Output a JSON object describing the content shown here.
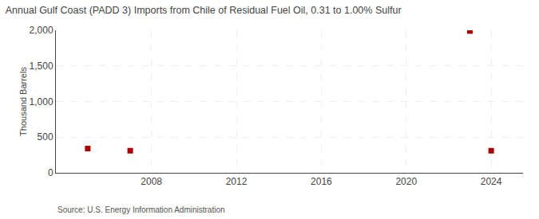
{
  "chart_data": {
    "type": "scatter",
    "title": "Annual Gulf Coast (PADD 3) Imports from Chile of Residual Fuel Oil, 0.31 to 1.00% Sulfur",
    "ylabel": "Thousand Barrels",
    "annotations": [
      "Source: U.S. Energy Information Administration"
    ],
    "x": [
      2005,
      2007,
      2023,
      2024
    ],
    "values": [
      340,
      310,
      1990,
      310
    ],
    "color": "#aa0000",
    "marker": "square",
    "xlim": [
      2003.5,
      2025.5
    ],
    "xticks": [
      2008,
      2012,
      2016,
      2020,
      2024
    ],
    "ylim": [
      0,
      2000
    ],
    "yticks": [
      0,
      500,
      {
        "value": 1000,
        "label": "1,000"
      },
      {
        "value": 1500,
        "label": "1,500"
      },
      {
        "value": 2000,
        "label": "2,000"
      }
    ],
    "grid": true
  }
}
